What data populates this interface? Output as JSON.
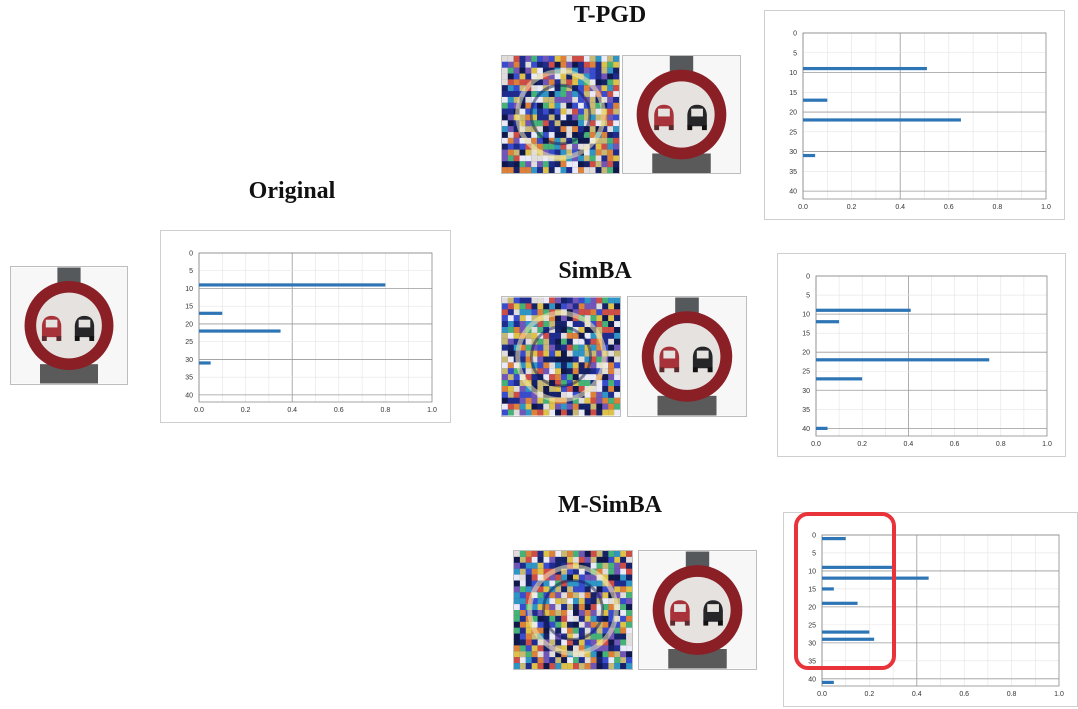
{
  "titles": {
    "original": "Original",
    "tpgd": "T-PGD",
    "simba": "SimBA",
    "msimba": "M-SimBA"
  },
  "colors": {
    "bar": "#2e75b6",
    "highlight": "#e8333a",
    "sign_ring": "#8a1f26",
    "sign_face": "#e6e2e0"
  },
  "chart_data": [
    {
      "id": "original",
      "type": "bar",
      "orientation": "horizontal",
      "yticks": [
        "0",
        "5",
        "10",
        "15",
        "20",
        "25",
        "30",
        "35",
        "40"
      ],
      "xticks": [
        "0.0",
        "0.2",
        "0.4",
        "0.6",
        "0.8",
        "1.0"
      ],
      "xlim": [
        0,
        1
      ],
      "ylim": [
        0,
        42
      ],
      "grid": true,
      "bars": [
        {
          "class": 9,
          "value": 0.8
        },
        {
          "class": 17,
          "value": 0.1
        },
        {
          "class": 22,
          "value": 0.35
        },
        {
          "class": 31,
          "value": 0.05
        }
      ]
    },
    {
      "id": "tpgd",
      "type": "bar",
      "orientation": "horizontal",
      "yticks": [
        "0",
        "5",
        "10",
        "15",
        "20",
        "25",
        "30",
        "35",
        "40"
      ],
      "xticks": [
        "0.0",
        "0.2",
        "0.4",
        "0.6",
        "0.8",
        "1.0"
      ],
      "xlim": [
        0,
        1
      ],
      "ylim": [
        0,
        42
      ],
      "grid": true,
      "bars": [
        {
          "class": 9,
          "value": 0.51
        },
        {
          "class": 17,
          "value": 0.1
        },
        {
          "class": 22,
          "value": 0.65
        },
        {
          "class": 31,
          "value": 0.05
        }
      ]
    },
    {
      "id": "simba",
      "type": "bar",
      "orientation": "horizontal",
      "yticks": [
        "0",
        "5",
        "10",
        "15",
        "20",
        "25",
        "30",
        "35",
        "40"
      ],
      "xticks": [
        "0.0",
        "0.2",
        "0.4",
        "0.6",
        "0.8",
        "1.0"
      ],
      "xlim": [
        0,
        1
      ],
      "ylim": [
        0,
        42
      ],
      "grid": true,
      "bars": [
        {
          "class": 9,
          "value": 0.41
        },
        {
          "class": 12,
          "value": 0.1
        },
        {
          "class": 22,
          "value": 0.75
        },
        {
          "class": 27,
          "value": 0.2
        },
        {
          "class": 40,
          "value": 0.05
        }
      ]
    },
    {
      "id": "msimba",
      "type": "bar",
      "orientation": "horizontal",
      "yticks": [
        "0",
        "5",
        "10",
        "15",
        "20",
        "25",
        "30",
        "35",
        "40"
      ],
      "xticks": [
        "0.0",
        "0.2",
        "0.4",
        "0.6",
        "0.8",
        "1.0"
      ],
      "xlim": [
        0,
        1
      ],
      "ylim": [
        0,
        42
      ],
      "grid": true,
      "bars": [
        {
          "class": 1,
          "value": 0.1
        },
        {
          "class": 9,
          "value": 0.31
        },
        {
          "class": 12,
          "value": 0.45
        },
        {
          "class": 15,
          "value": 0.05
        },
        {
          "class": 19,
          "value": 0.15
        },
        {
          "class": 27,
          "value": 0.2
        },
        {
          "class": 29,
          "value": 0.22
        },
        {
          "class": 41,
          "value": 0.05
        }
      ]
    }
  ]
}
